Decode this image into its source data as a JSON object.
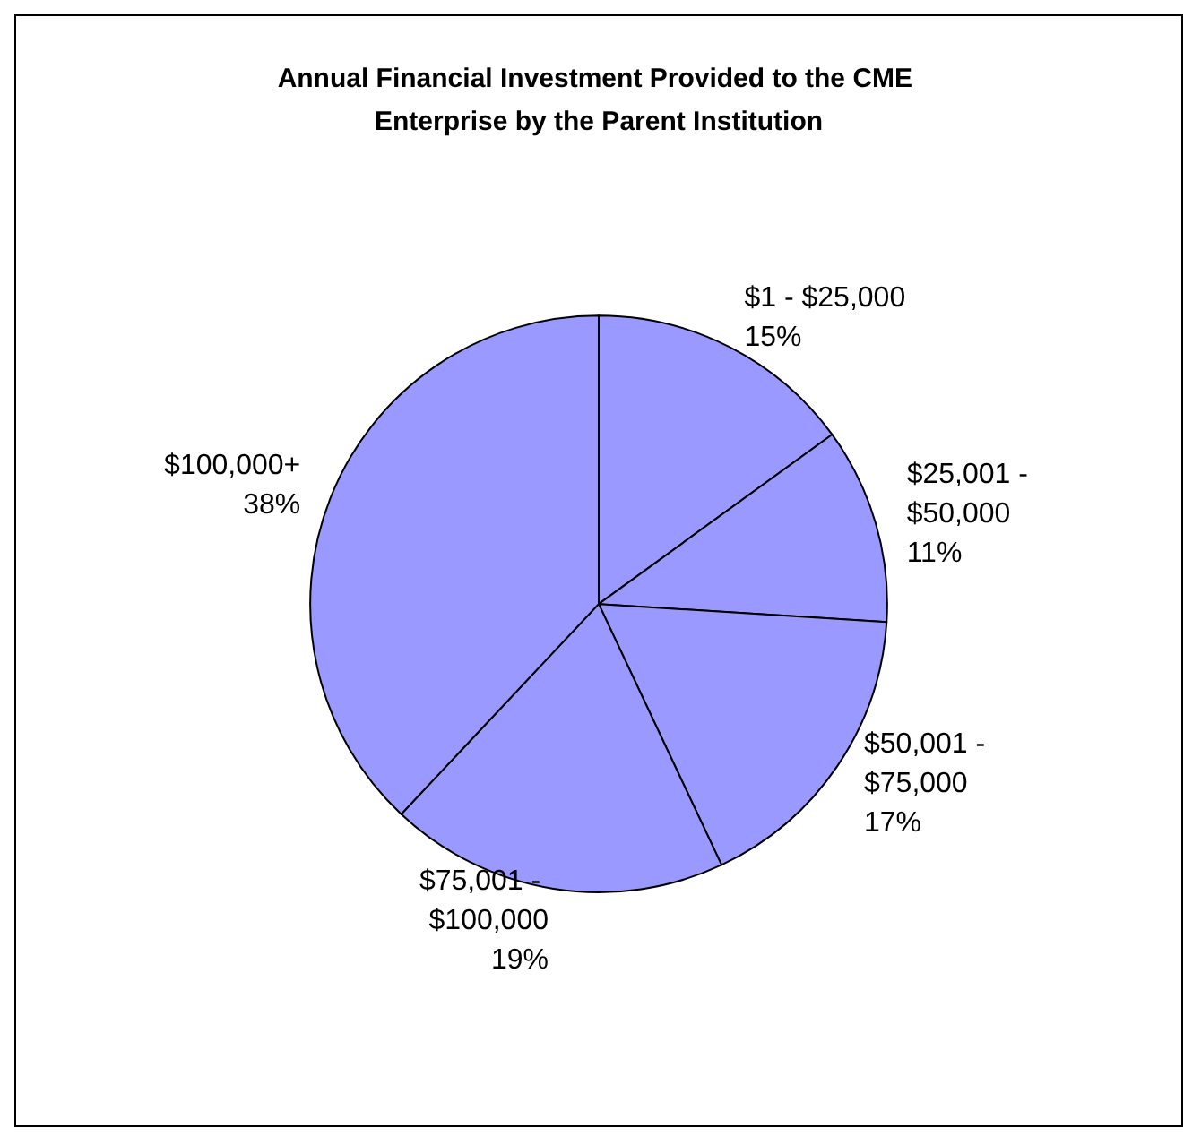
{
  "chart_data": {
    "type": "pie",
    "title": "Annual Financial Investment Provided to the CME Enterprise by the Parent Institution",
    "categories": [
      "$1 - $25,000",
      "$25,001 - $50,000",
      "$50,001 - $75,000",
      "$75,001 - $100,000",
      "$100,000+"
    ],
    "values": [
      15,
      11,
      17,
      19,
      38
    ],
    "value_labels": [
      "15%",
      "11%",
      "17%",
      "19%",
      "38%"
    ],
    "colors": [
      "#9999ff",
      "#9999ff",
      "#9999ff",
      "#9999ff",
      "#9999ff"
    ],
    "legend": false
  }
}
